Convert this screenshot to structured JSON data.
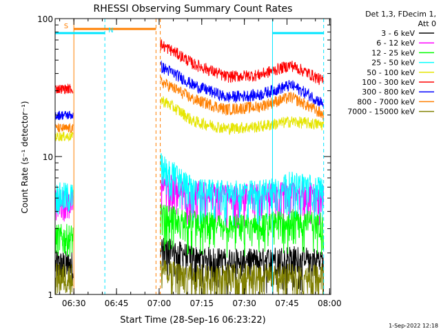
{
  "chart_data": {
    "type": "line",
    "title": "RHESSI Observing Summary Count Rates",
    "xlabel": "Start Time (28-Sep-16 06:23:22)",
    "ylabel": "Count Rate (s⁻¹ detector⁻¹)",
    "yscale": "log",
    "ylim": [
      1,
      100
    ],
    "xlim_minutes": [
      0,
      97
    ],
    "x_ticks": [
      {
        "label": "06:30",
        "t": 6.6
      },
      {
        "label": "06:45",
        "t": 21.6
      },
      {
        "label": "07:00",
        "t": 36.6
      },
      {
        "label": "07:15",
        "t": 51.6
      },
      {
        "label": "07:30",
        "t": 66.6
      },
      {
        "label": "07:45",
        "t": 81.6
      },
      {
        "label": "08:00",
        "t": 96.6
      }
    ],
    "y_ticks": [
      {
        "label": "1",
        "v": 1
      },
      {
        "label": "10",
        "v": 10
      },
      {
        "label": "100",
        "v": 100
      }
    ],
    "legend_header": [
      "Det 1,3, FDecim 1,",
      "Att 0"
    ],
    "legend_placement": "right",
    "timestamp": "1-Sep-2022 12:18",
    "flags": [
      {
        "name": "S",
        "color": "#ff7f00",
        "t0": 6.5,
        "t1": 35.5
      },
      {
        "name": "N",
        "color": "#00e5ff",
        "t0": 0,
        "t1": 17.5
      },
      {
        "name": "",
        "color": "#00e5ff",
        "t0": 76.5,
        "t1": 94.5
      }
    ],
    "vlines": [
      {
        "t": 6.6,
        "color": "#ff7f00",
        "style": "solid"
      },
      {
        "t": 17.5,
        "color": "#00e5ff",
        "style": "dashed"
      },
      {
        "t": 35.5,
        "color": "#ff7f00",
        "style": "dashed"
      },
      {
        "t": 37.0,
        "color": "#ff7f00",
        "style": "dashed"
      },
      {
        "t": 76.5,
        "color": "#00e5ff",
        "style": "solid"
      },
      {
        "t": 94.5,
        "color": "#00e5ff",
        "style": "dashed"
      }
    ],
    "data_gap_minutes": [
      6.6,
      37.0
    ],
    "series": [
      {
        "name": "3 - 6 keV",
        "color": "#000000",
        "values": {
          "pre": 1.6,
          "post": [
            2.2,
            1.9,
            1.8,
            1.8,
            1.9,
            1.8
          ]
        }
      },
      {
        "name": "6 - 12 keV",
        "color": "#ff00ff",
        "values": {
          "pre": 4.5,
          "post": [
            6.5,
            5.6,
            5.3,
            5.3,
            5.6,
            5.4
          ]
        }
      },
      {
        "name": "12 - 25 keV",
        "color": "#00ff00",
        "values": {
          "pre": 2.5,
          "post": [
            3.8,
            3.4,
            3.2,
            3.2,
            3.5,
            3.3
          ]
        }
      },
      {
        "name": "25 - 50 keV",
        "color": "#00ffff",
        "values": {
          "pre": 5.0,
          "post": [
            9.0,
            5.8,
            5.6,
            5.6,
            6.5,
            6.0
          ]
        }
      },
      {
        "name": "50 - 100 keV",
        "color": "#e5e500",
        "values": {
          "pre": 14.0,
          "post": [
            26.0,
            18.0,
            16.0,
            16.5,
            18.0,
            17.0
          ]
        }
      },
      {
        "name": "100 - 300 keV",
        "color": "#ff0000",
        "values": {
          "pre": 31.0,
          "post": [
            65.0,
            47.0,
            38.0,
            39.0,
            46.0,
            35.0
          ]
        }
      },
      {
        "name": "300 - 800 keV",
        "color": "#0000ff",
        "values": {
          "pre": 20.0,
          "post": [
            45.0,
            33.0,
            27.0,
            28.0,
            33.0,
            24.0
          ]
        }
      },
      {
        "name": "800 - 7000 keV",
        "color": "#ff7f00",
        "values": {
          "pre": 16.0,
          "post": [
            35.0,
            26.0,
            22.0,
            23.0,
            27.0,
            20.0
          ]
        }
      },
      {
        "name": "7000 - 15000 keV",
        "color": "#808000",
        "values": {
          "pre": 1.3,
          "post": [
            1.5,
            1.4,
            1.4,
            1.4,
            1.4,
            1.4
          ]
        }
      }
    ]
  }
}
